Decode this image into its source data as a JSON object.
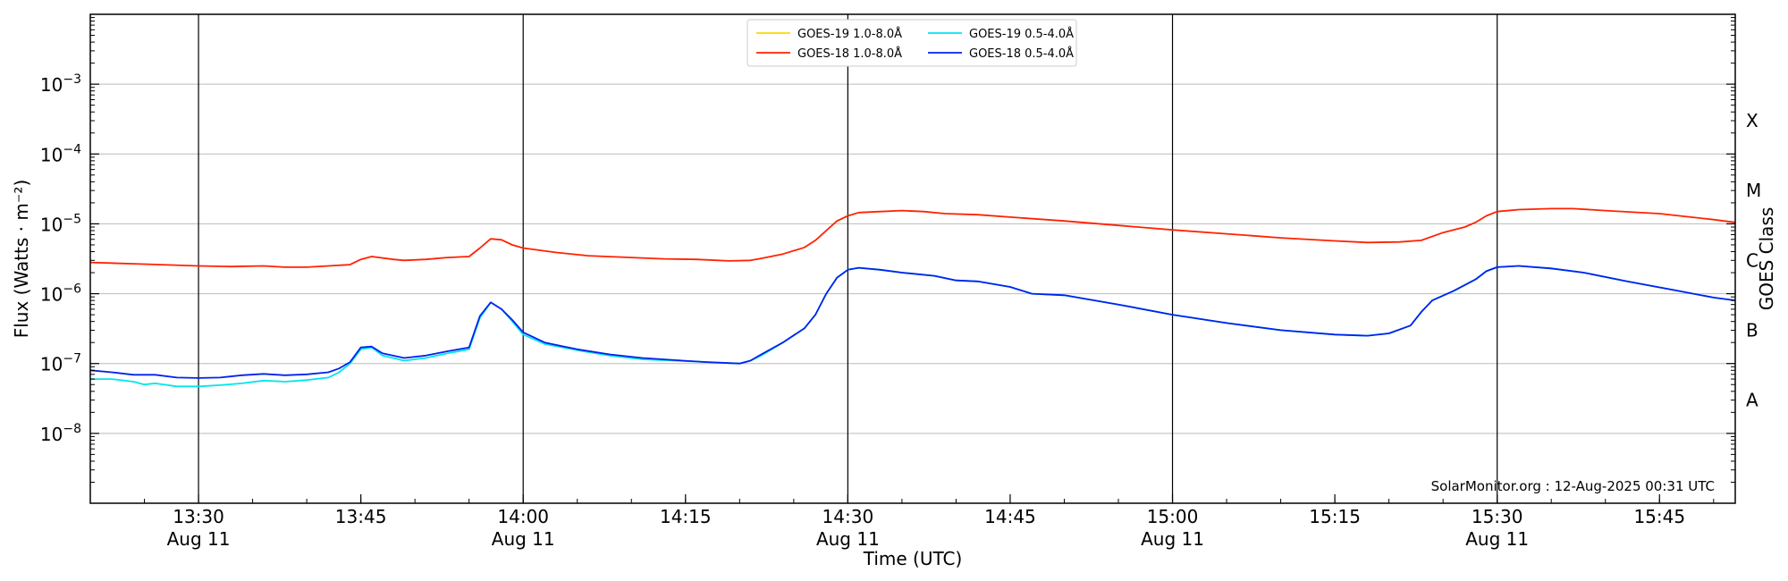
{
  "chart_data": {
    "type": "line",
    "xlabel": "Time (UTC)",
    "ylabel": "Flux (Watts · m⁻²)",
    "ylabel_right": "GOES Class",
    "yscale": "log",
    "ylim": [
      1e-09,
      0.01
    ],
    "xlim": [
      "13:20",
      "15:52"
    ],
    "grid": "horizontal at decades; vertical lines at half-hours",
    "legend_placement": "top-center",
    "annotation": "SolarMonitor.org : 12-Aug-2025 00:31 UTC",
    "x_ticks": [
      {
        "t": "13:30",
        "label": "13:30",
        "sub": "Aug 11"
      },
      {
        "t": "13:45",
        "label": "13:45",
        "sub": ""
      },
      {
        "t": "14:00",
        "label": "14:00",
        "sub": "Aug 11"
      },
      {
        "t": "14:15",
        "label": "14:15",
        "sub": ""
      },
      {
        "t": "14:30",
        "label": "14:30",
        "sub": "Aug 11"
      },
      {
        "t": "14:45",
        "label": "14:45",
        "sub": ""
      },
      {
        "t": "15:00",
        "label": "15:00",
        "sub": "Aug 11"
      },
      {
        "t": "15:15",
        "label": "15:15",
        "sub": ""
      },
      {
        "t": "15:30",
        "label": "15:30",
        "sub": "Aug 11"
      },
      {
        "t": "15:45",
        "label": "15:45",
        "sub": ""
      }
    ],
    "vlines": [
      "13:30",
      "14:00",
      "14:30",
      "15:00",
      "15:30"
    ],
    "y_ticks": [
      {
        "value": 1e-08,
        "exp": "−8"
      },
      {
        "value": 1e-07,
        "exp": "−7"
      },
      {
        "value": 1e-06,
        "exp": "−6"
      },
      {
        "value": 1e-05,
        "exp": "−5"
      },
      {
        "value": 0.0001,
        "exp": "−4"
      },
      {
        "value": 0.001,
        "exp": "−3"
      }
    ],
    "classes": [
      {
        "label": "A",
        "value": 3e-08
      },
      {
        "label": "B",
        "value": 3e-07
      },
      {
        "label": "C",
        "value": 3e-06
      },
      {
        "label": "M",
        "value": 3e-05
      },
      {
        "label": "X",
        "value": 0.0003
      }
    ],
    "series": [
      {
        "name": "GOES-19 1.0-8.0Å",
        "color": "#ffd700",
        "legend_only": true,
        "points": []
      },
      {
        "name": "GOES-18 1.0-8.0Å",
        "color": "#ff2200",
        "points": [
          [
            "13:20",
            2.8e-06
          ],
          [
            "13:25",
            2.65e-06
          ],
          [
            "13:30",
            2.5e-06
          ],
          [
            "13:33",
            2.45e-06
          ],
          [
            "13:36",
            2.5e-06
          ],
          [
            "13:38",
            2.4e-06
          ],
          [
            "13:40",
            2.4e-06
          ],
          [
            "13:42",
            2.5e-06
          ],
          [
            "13:44",
            2.6e-06
          ],
          [
            "13:45",
            3.1e-06
          ],
          [
            "13:46",
            3.4e-06
          ],
          [
            "13:48",
            3.1e-06
          ],
          [
            "13:49",
            3e-06
          ],
          [
            "13:51",
            3.1e-06
          ],
          [
            "13:53",
            3.3e-06
          ],
          [
            "13:55",
            3.4e-06
          ],
          [
            "13:56",
            4.5e-06
          ],
          [
            "13:57",
            6.1e-06
          ],
          [
            "13:58",
            5.9e-06
          ],
          [
            "13:59",
            5e-06
          ],
          [
            "14:00",
            4.5e-06
          ],
          [
            "14:03",
            3.9e-06
          ],
          [
            "14:06",
            3.5e-06
          ],
          [
            "14:10",
            3.3e-06
          ],
          [
            "14:13",
            3.15e-06
          ],
          [
            "14:16",
            3.1e-06
          ],
          [
            "14:19",
            2.95e-06
          ],
          [
            "14:21",
            3e-06
          ],
          [
            "14:22",
            3.2e-06
          ],
          [
            "14:24",
            3.7e-06
          ],
          [
            "14:26",
            4.6e-06
          ],
          [
            "14:27",
            5.8e-06
          ],
          [
            "14:28",
            8e-06
          ],
          [
            "14:29",
            1.1e-05
          ],
          [
            "14:30",
            1.3e-05
          ],
          [
            "14:31",
            1.45e-05
          ],
          [
            "14:33",
            1.5e-05
          ],
          [
            "14:35",
            1.55e-05
          ],
          [
            "14:37",
            1.5e-05
          ],
          [
            "14:39",
            1.4e-05
          ],
          [
            "14:42",
            1.35e-05
          ],
          [
            "14:45",
            1.25e-05
          ],
          [
            "14:50",
            1.1e-05
          ],
          [
            "14:55",
            9.5e-06
          ],
          [
            "15:00",
            8.2e-06
          ],
          [
            "15:05",
            7.2e-06
          ],
          [
            "15:10",
            6.3e-06
          ],
          [
            "15:15",
            5.7e-06
          ],
          [
            "15:18",
            5.4e-06
          ],
          [
            "15:21",
            5.5e-06
          ],
          [
            "15:23",
            5.8e-06
          ],
          [
            "15:25",
            7.5e-06
          ],
          [
            "15:27",
            9e-06
          ],
          [
            "15:28",
            1.05e-05
          ],
          [
            "15:29",
            1.3e-05
          ],
          [
            "15:30",
            1.5e-05
          ],
          [
            "15:32",
            1.6e-05
          ],
          [
            "15:35",
            1.65e-05
          ],
          [
            "15:37",
            1.65e-05
          ],
          [
            "15:40",
            1.55e-05
          ],
          [
            "15:45",
            1.4e-05
          ],
          [
            "15:50",
            1.15e-05
          ],
          [
            "15:52",
            1.05e-05
          ]
        ]
      },
      {
        "name": "GOES-19 0.5-4.0Å",
        "color": "#00e5ee",
        "points": [
          [
            "13:20",
            6e-08
          ],
          [
            "13:22",
            6e-08
          ],
          [
            "13:24",
            5.5e-08
          ],
          [
            "13:25",
            5e-08
          ],
          [
            "13:26",
            5.2e-08
          ],
          [
            "13:28",
            4.7e-08
          ],
          [
            "13:30",
            4.7e-08
          ],
          [
            "13:32",
            4.9e-08
          ],
          [
            "13:34",
            5.2e-08
          ],
          [
            "13:36",
            5.7e-08
          ],
          [
            "13:38",
            5.5e-08
          ],
          [
            "13:40",
            5.8e-08
          ],
          [
            "13:42",
            6.3e-08
          ],
          [
            "13:43",
            7.5e-08
          ],
          [
            "13:44",
            1e-07
          ],
          [
            "13:45",
            1.6e-07
          ],
          [
            "13:46",
            1.7e-07
          ],
          [
            "13:47",
            1.3e-07
          ],
          [
            "13:49",
            1.1e-07
          ],
          [
            "13:51",
            1.2e-07
          ],
          [
            "13:53",
            1.4e-07
          ],
          [
            "13:55",
            1.6e-07
          ],
          [
            "13:56",
            4.5e-07
          ],
          [
            "13:57",
            7.5e-07
          ],
          [
            "13:58",
            6e-07
          ],
          [
            "13:59",
            4e-07
          ],
          [
            "14:00",
            2.6e-07
          ],
          [
            "14:02",
            1.9e-07
          ],
          [
            "14:05",
            1.55e-07
          ],
          [
            "14:08",
            1.3e-07
          ],
          [
            "14:11",
            1.15e-07
          ],
          [
            "14:14",
            1.1e-07
          ],
          [
            "14:17",
            1.05e-07
          ],
          [
            "14:20",
            1e-07
          ],
          [
            "14:21",
            1.1e-07
          ],
          [
            "14:22",
            1.3e-07
          ],
          [
            "14:24",
            2e-07
          ],
          [
            "14:26",
            3.2e-07
          ],
          [
            "14:27",
            5e-07
          ],
          [
            "14:28",
            1e-06
          ],
          [
            "14:29",
            1.7e-06
          ],
          [
            "14:30",
            2.2e-06
          ],
          [
            "14:31",
            2.35e-06
          ],
          [
            "14:33",
            2.2e-06
          ],
          [
            "14:35",
            2e-06
          ],
          [
            "14:38",
            1.8e-06
          ],
          [
            "14:40",
            1.55e-06
          ],
          [
            "14:42",
            1.5e-06
          ],
          [
            "14:45",
            1.25e-06
          ],
          [
            "14:47",
            1e-06
          ],
          [
            "14:50",
            9.5e-07
          ],
          [
            "14:55",
            7e-07
          ],
          [
            "15:00",
            5e-07
          ],
          [
            "15:05",
            3.8e-07
          ],
          [
            "15:10",
            3e-07
          ],
          [
            "15:15",
            2.6e-07
          ],
          [
            "15:18",
            2.5e-07
          ],
          [
            "15:20",
            2.7e-07
          ],
          [
            "15:22",
            3.5e-07
          ],
          [
            "15:23",
            5.5e-07
          ],
          [
            "15:24",
            8e-07
          ],
          [
            "15:26",
            1.1e-06
          ],
          [
            "15:28",
            1.6e-06
          ],
          [
            "15:29",
            2.1e-06
          ],
          [
            "15:30",
            2.4e-06
          ],
          [
            "15:32",
            2.5e-06
          ],
          [
            "15:35",
            2.3e-06
          ],
          [
            "15:38",
            2e-06
          ],
          [
            "15:42",
            1.5e-06
          ],
          [
            "15:46",
            1.15e-06
          ],
          [
            "15:50",
            8.8e-07
          ],
          [
            "15:52",
            8e-07
          ]
        ]
      },
      {
        "name": "GOES-18 0.5-4.0Å",
        "color": "#0022ee",
        "points": [
          [
            "13:20",
            8e-08
          ],
          [
            "13:22",
            7.5e-08
          ],
          [
            "13:24",
            6.9e-08
          ],
          [
            "13:26",
            6.9e-08
          ],
          [
            "13:28",
            6.3e-08
          ],
          [
            "13:30",
            6.2e-08
          ],
          [
            "13:32",
            6.3e-08
          ],
          [
            "13:34",
            6.8e-08
          ],
          [
            "13:36",
            7.1e-08
          ],
          [
            "13:38",
            6.8e-08
          ],
          [
            "13:40",
            7e-08
          ],
          [
            "13:42",
            7.5e-08
          ],
          [
            "13:43",
            8.5e-08
          ],
          [
            "13:44",
            1.05e-07
          ],
          [
            "13:45",
            1.7e-07
          ],
          [
            "13:46",
            1.75e-07
          ],
          [
            "13:47",
            1.4e-07
          ],
          [
            "13:49",
            1.2e-07
          ],
          [
            "13:51",
            1.3e-07
          ],
          [
            "13:53",
            1.5e-07
          ],
          [
            "13:55",
            1.7e-07
          ],
          [
            "13:56",
            4.8e-07
          ],
          [
            "13:57",
            7.5e-07
          ],
          [
            "13:58",
            6e-07
          ],
          [
            "13:59",
            4.2e-07
          ],
          [
            "14:00",
            2.8e-07
          ],
          [
            "14:02",
            2e-07
          ],
          [
            "14:05",
            1.6e-07
          ],
          [
            "14:08",
            1.35e-07
          ],
          [
            "14:11",
            1.2e-07
          ],
          [
            "14:14",
            1.12e-07
          ],
          [
            "14:17",
            1.05e-07
          ],
          [
            "14:20",
            1e-07
          ],
          [
            "14:21",
            1.1e-07
          ],
          [
            "14:22",
            1.35e-07
          ],
          [
            "14:24",
            2e-07
          ],
          [
            "14:26",
            3.2e-07
          ],
          [
            "14:27",
            5e-07
          ],
          [
            "14:28",
            1e-06
          ],
          [
            "14:29",
            1.7e-06
          ],
          [
            "14:30",
            2.2e-06
          ],
          [
            "14:31",
            2.35e-06
          ],
          [
            "14:33",
            2.2e-06
          ],
          [
            "14:35",
            2e-06
          ],
          [
            "14:38",
            1.8e-06
          ],
          [
            "14:40",
            1.55e-06
          ],
          [
            "14:42",
            1.5e-06
          ],
          [
            "14:45",
            1.25e-06
          ],
          [
            "14:47",
            1e-06
          ],
          [
            "14:50",
            9.5e-07
          ],
          [
            "14:55",
            7e-07
          ],
          [
            "15:00",
            5e-07
          ],
          [
            "15:05",
            3.8e-07
          ],
          [
            "15:10",
            3e-07
          ],
          [
            "15:15",
            2.6e-07
          ],
          [
            "15:18",
            2.5e-07
          ],
          [
            "15:20",
            2.7e-07
          ],
          [
            "15:22",
            3.5e-07
          ],
          [
            "15:23",
            5.5e-07
          ],
          [
            "15:24",
            8e-07
          ],
          [
            "15:26",
            1.1e-06
          ],
          [
            "15:28",
            1.6e-06
          ],
          [
            "15:29",
            2.1e-06
          ],
          [
            "15:30",
            2.4e-06
          ],
          [
            "15:32",
            2.5e-06
          ],
          [
            "15:35",
            2.3e-06
          ],
          [
            "15:38",
            2e-06
          ],
          [
            "15:42",
            1.5e-06
          ],
          [
            "15:46",
            1.15e-06
          ],
          [
            "15:50",
            8.8e-07
          ],
          [
            "15:52",
            8e-07
          ]
        ]
      }
    ]
  }
}
